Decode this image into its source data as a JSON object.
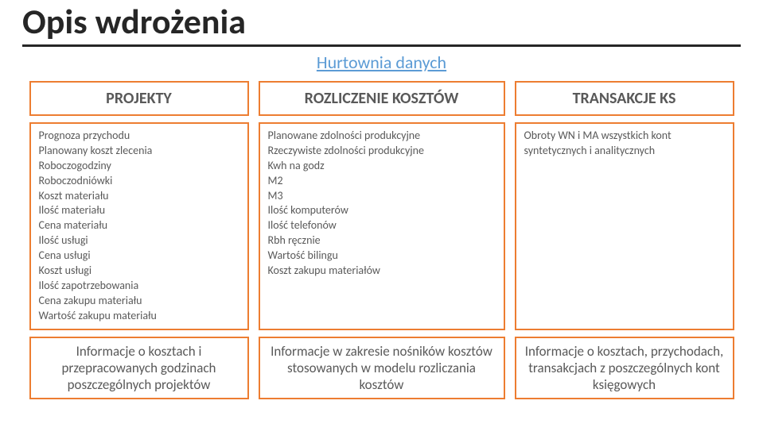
{
  "colors": {
    "accent_border": "#ed7d31",
    "subtitle": "#5b9bd5",
    "title": "#262626",
    "text": "#595959",
    "background": "#ffffff"
  },
  "title": "Opis wdrożenia",
  "subtitle": "Hurtownia danych",
  "columns": [
    {
      "header": "PROJEKTY"
    },
    {
      "header": "ROZLICZENIE KOSZTÓW"
    },
    {
      "header": "TRANSAKCJE KS"
    }
  ],
  "body": {
    "col1": [
      "Prognoza przychodu",
      "Planowany koszt zlecenia",
      "Roboczogodziny",
      "Roboczodniówki",
      "Koszt materiału",
      "Ilość materiału",
      "Cena materiału",
      "Ilość usługi",
      "Cena usługi",
      "Koszt usługi",
      "Ilość zapotrzebowania",
      "Cena zakupu materiału",
      "Wartość zakupu materiału"
    ],
    "col2": [
      "Planowane zdolności produkcyjne",
      "Rzeczywiste zdolności produkcyjne",
      "Kwh na godz",
      "M2",
      "M3",
      "Ilość komputerów",
      "Ilość telefonów",
      "Rbh ręcznie",
      "Wartość bilingu",
      "Koszt zakupu materiałów"
    ],
    "col3": [
      "Obroty WN i MA wszystkich kont syntetycznych i analitycznych"
    ]
  },
  "footer": {
    "col1": "Informacje o kosztach i przepracowanych godzinach poszczególnych projektów",
    "col2": "Informacje w zakresie nośników kosztów stosowanych w modelu rozliczania kosztów",
    "col3": "Informacje o kosztach, przychodach, transakcjach z poszczególnych kont księgowych"
  }
}
